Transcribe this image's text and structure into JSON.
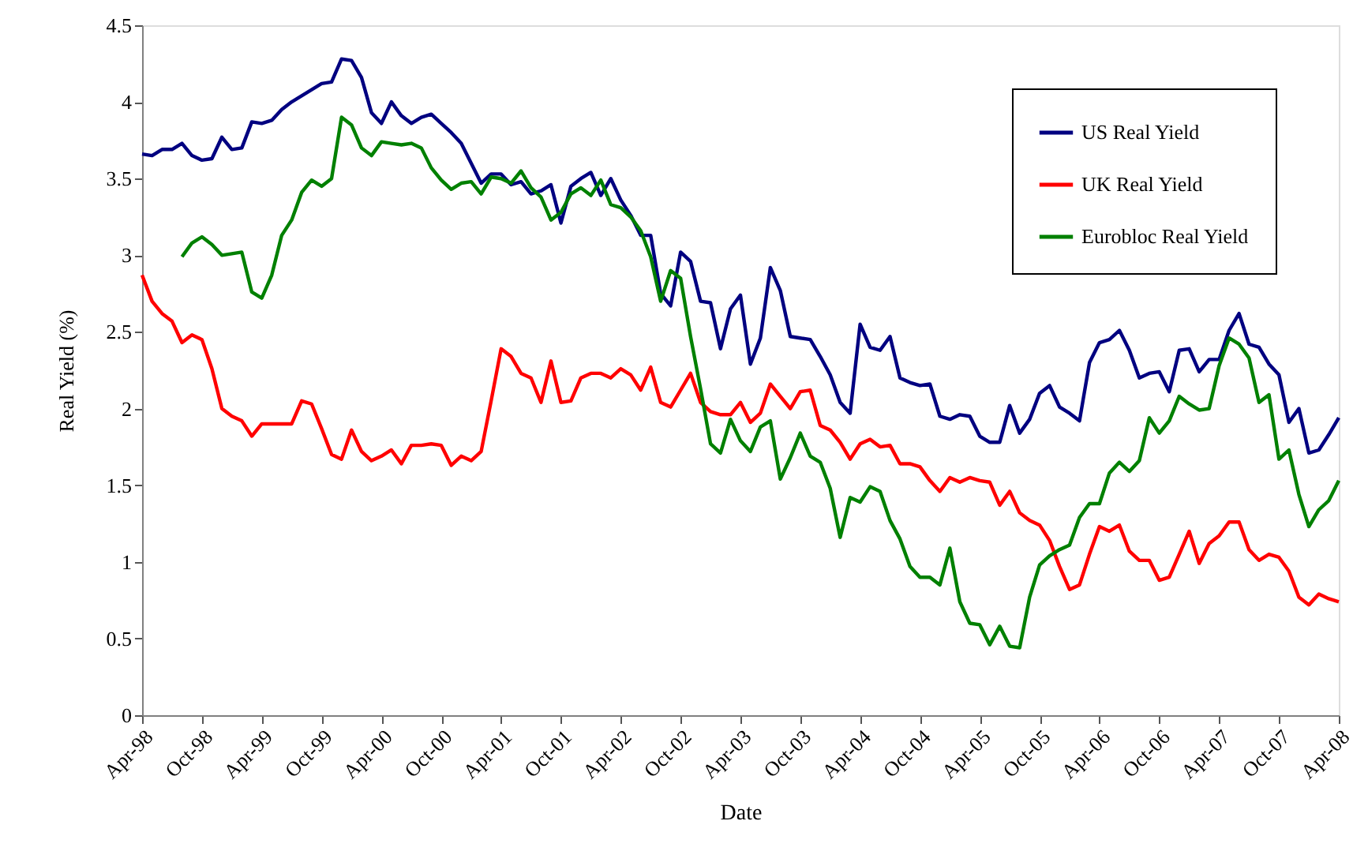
{
  "chart_data": {
    "type": "line",
    "xlabel": "Date",
    "ylabel": "Real Yield (%)",
    "x": [
      "1998-04",
      "1998-05",
      "1998-06",
      "1998-07",
      "1998-08",
      "1998-09",
      "1998-10",
      "1998-11",
      "1998-12",
      "1999-01",
      "1999-02",
      "1999-03",
      "1999-04",
      "1999-05",
      "1999-06",
      "1999-07",
      "1999-08",
      "1999-09",
      "1999-10",
      "1999-11",
      "1999-12",
      "2000-01",
      "2000-02",
      "2000-03",
      "2000-04",
      "2000-05",
      "2000-06",
      "2000-07",
      "2000-08",
      "2000-09",
      "2000-10",
      "2000-11",
      "2000-12",
      "2001-01",
      "2001-02",
      "2001-03",
      "2001-04",
      "2001-05",
      "2001-06",
      "2001-07",
      "2001-08",
      "2001-09",
      "2001-10",
      "2001-11",
      "2001-12",
      "2002-01",
      "2002-02",
      "2002-03",
      "2002-04",
      "2002-05",
      "2002-06",
      "2002-07",
      "2002-08",
      "2002-09",
      "2002-10",
      "2002-11",
      "2002-12",
      "2003-01",
      "2003-02",
      "2003-03",
      "2003-04",
      "2003-05",
      "2003-06",
      "2003-07",
      "2003-08",
      "2003-09",
      "2003-10",
      "2003-11",
      "2003-12",
      "2004-01",
      "2004-02",
      "2004-03",
      "2004-04",
      "2004-05",
      "2004-06",
      "2004-07",
      "2004-08",
      "2004-09",
      "2004-10",
      "2004-11",
      "2004-12",
      "2005-01",
      "2005-02",
      "2005-03",
      "2005-04",
      "2005-05",
      "2005-06",
      "2005-07",
      "2005-08",
      "2005-09",
      "2005-10",
      "2005-11",
      "2005-12",
      "2006-01",
      "2006-02",
      "2006-03",
      "2006-04",
      "2006-05",
      "2006-06",
      "2006-07",
      "2006-08",
      "2006-09",
      "2006-10",
      "2006-11",
      "2006-12",
      "2007-01",
      "2007-02",
      "2007-03",
      "2007-04",
      "2007-05",
      "2007-06",
      "2007-07",
      "2007-08",
      "2007-09",
      "2007-10",
      "2007-11",
      "2007-12",
      "2008-01",
      "2008-02",
      "2008-03",
      "2008-04"
    ],
    "series": [
      {
        "name": "US Real Yield",
        "color": "#000080",
        "values": [
          3.66,
          3.65,
          3.69,
          3.69,
          3.73,
          3.65,
          3.62,
          3.63,
          3.77,
          3.69,
          3.7,
          3.87,
          3.86,
          3.88,
          3.95,
          4.0,
          4.04,
          4.08,
          4.12,
          4.13,
          4.28,
          4.27,
          4.16,
          3.93,
          3.86,
          4.0,
          3.91,
          3.86,
          3.9,
          3.92,
          3.86,
          3.8,
          3.73,
          3.6,
          3.47,
          3.53,
          3.53,
          3.46,
          3.48,
          3.4,
          3.42,
          3.46,
          3.21,
          3.45,
          3.5,
          3.54,
          3.39,
          3.5,
          3.36,
          3.26,
          3.13,
          3.13,
          2.75,
          2.67,
          3.02,
          2.96,
          2.7,
          2.69,
          2.39,
          2.65,
          2.74,
          2.29,
          2.46,
          2.92,
          2.77,
          2.47,
          2.46,
          2.45,
          2.34,
          2.22,
          2.04,
          1.97,
          2.55,
          2.4,
          2.38,
          2.47,
          2.2,
          2.17,
          2.15,
          2.16,
          1.95,
          1.93,
          1.96,
          1.95,
          1.82,
          1.78,
          1.78,
          2.02,
          1.84,
          1.93,
          2.1,
          2.15,
          2.01,
          1.97,
          1.92,
          2.3,
          2.43,
          2.45,
          2.51,
          2.38,
          2.2,
          2.23,
          2.24,
          2.11,
          2.38,
          2.39,
          2.24,
          2.32,
          2.32,
          2.51,
          2.62,
          2.42,
          2.4,
          2.29,
          2.22,
          1.91,
          2.0,
          1.71,
          1.73,
          1.83,
          1.94
        ]
      },
      {
        "name": "UK Real Yield",
        "color": "#ff0000",
        "values": [
          2.87,
          2.7,
          2.62,
          2.57,
          2.43,
          2.48,
          2.45,
          2.26,
          2.0,
          1.95,
          1.92,
          1.82,
          1.9,
          1.9,
          1.9,
          1.9,
          2.05,
          2.03,
          1.87,
          1.7,
          1.67,
          1.86,
          1.72,
          1.66,
          1.69,
          1.73,
          1.64,
          1.76,
          1.76,
          1.77,
          1.76,
          1.63,
          1.69,
          1.66,
          1.72,
          2.05,
          2.39,
          2.34,
          2.23,
          2.2,
          2.04,
          2.31,
          2.04,
          2.05,
          2.2,
          2.23,
          2.23,
          2.2,
          2.26,
          2.22,
          2.12,
          2.27,
          2.04,
          2.01,
          2.12,
          2.23,
          2.04,
          1.98,
          1.96,
          1.96,
          2.04,
          1.91,
          1.97,
          2.16,
          2.08,
          2.0,
          2.11,
          2.12,
          1.89,
          1.86,
          1.78,
          1.67,
          1.77,
          1.8,
          1.75,
          1.76,
          1.64,
          1.64,
          1.62,
          1.53,
          1.46,
          1.55,
          1.52,
          1.55,
          1.53,
          1.52,
          1.37,
          1.46,
          1.32,
          1.27,
          1.24,
          1.14,
          0.97,
          0.82,
          0.85,
          1.05,
          1.23,
          1.2,
          1.24,
          1.07,
          1.01,
          1.01,
          0.88,
          0.9,
          1.05,
          1.2,
          0.99,
          1.12,
          1.17,
          1.26,
          1.26,
          1.08,
          1.01,
          1.05,
          1.03,
          0.94,
          0.77,
          0.72,
          0.79,
          0.76,
          0.74
        ]
      },
      {
        "name": "Eurobloc Real Yield",
        "color": "#008000",
        "values": [
          null,
          null,
          null,
          null,
          2.99,
          3.08,
          3.12,
          3.07,
          3.0,
          3.01,
          3.02,
          2.76,
          2.72,
          2.87,
          3.13,
          3.23,
          3.41,
          3.49,
          3.45,
          3.5,
          3.9,
          3.85,
          3.7,
          3.65,
          3.74,
          3.73,
          3.72,
          3.73,
          3.7,
          3.57,
          3.49,
          3.43,
          3.47,
          3.48,
          3.4,
          3.51,
          3.5,
          3.47,
          3.55,
          3.44,
          3.38,
          3.23,
          3.28,
          3.4,
          3.44,
          3.39,
          3.49,
          3.33,
          3.31,
          3.25,
          3.16,
          2.99,
          2.7,
          2.9,
          2.85,
          2.47,
          2.13,
          1.77,
          1.71,
          1.93,
          1.79,
          1.72,
          1.88,
          1.92,
          1.54,
          1.68,
          1.84,
          1.69,
          1.65,
          1.48,
          1.16,
          1.42,
          1.39,
          1.49,
          1.46,
          1.27,
          1.15,
          0.97,
          0.9,
          0.9,
          0.85,
          1.09,
          0.74,
          0.6,
          0.59,
          0.46,
          0.58,
          0.45,
          0.44,
          0.77,
          0.98,
          1.04,
          1.08,
          1.11,
          1.29,
          1.38,
          1.38,
          1.58,
          1.65,
          1.59,
          1.66,
          1.94,
          1.84,
          1.92,
          2.08,
          2.03,
          1.99,
          2.0,
          2.28,
          2.46,
          2.42,
          2.33,
          2.04,
          2.09,
          1.67,
          1.73,
          1.44,
          1.23,
          1.34,
          1.4,
          1.53
        ]
      }
    ],
    "xlim": [
      "1998-04",
      "2008-04"
    ],
    "xticks": [
      {
        "value": "1998-04",
        "label": "Apr-98"
      },
      {
        "value": "1998-10",
        "label": "Oct-98"
      },
      {
        "value": "1999-04",
        "label": "Apr-99"
      },
      {
        "value": "1999-10",
        "label": "Oct-99"
      },
      {
        "value": "2000-04",
        "label": "Apr-00"
      },
      {
        "value": "2000-10",
        "label": "Oct-00"
      },
      {
        "value": "2001-04",
        "label": "Apr-01"
      },
      {
        "value": "2001-10",
        "label": "Oct-01"
      },
      {
        "value": "2002-04",
        "label": "Apr-02"
      },
      {
        "value": "2002-10",
        "label": "Oct-02"
      },
      {
        "value": "2003-04",
        "label": "Apr-03"
      },
      {
        "value": "2003-10",
        "label": "Oct-03"
      },
      {
        "value": "2004-04",
        "label": "Apr-04"
      },
      {
        "value": "2004-10",
        "label": "Oct-04"
      },
      {
        "value": "2005-04",
        "label": "Apr-05"
      },
      {
        "value": "2005-10",
        "label": "Oct-05"
      },
      {
        "value": "2006-04",
        "label": "Apr-06"
      },
      {
        "value": "2006-10",
        "label": "Oct-06"
      },
      {
        "value": "2007-04",
        "label": "Apr-07"
      },
      {
        "value": "2007-10",
        "label": "Oct-07"
      },
      {
        "value": "2008-04",
        "label": "Apr-08"
      }
    ],
    "ylim": [
      0,
      4.5
    ],
    "yticks": [
      0,
      0.5,
      1,
      1.5,
      2,
      2.5,
      3,
      3.5,
      4,
      4.5
    ],
    "grid": false,
    "legend": "top right",
    "marker": "none",
    "line_style": "solid"
  }
}
